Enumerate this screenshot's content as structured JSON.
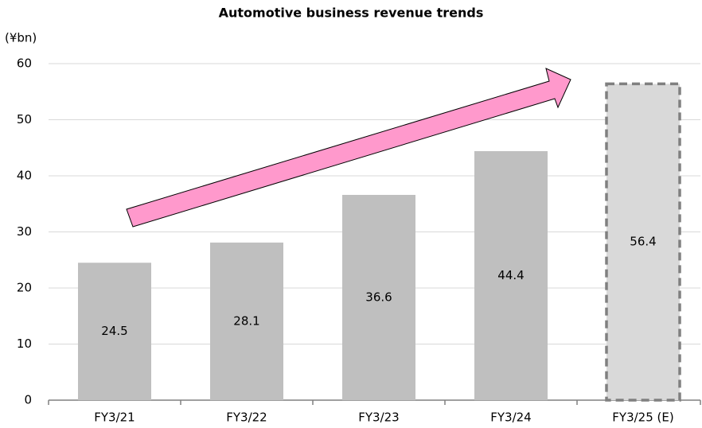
{
  "chart_data": {
    "type": "bar",
    "title": "Automotive business revenue trends",
    "y_label": "(¥bn)",
    "categories": [
      "FY3/21",
      "FY3/22",
      "FY3/23",
      "FY3/24",
      "FY3/25 (E)"
    ],
    "values": [
      24.5,
      28.1,
      36.6,
      44.4,
      56.4
    ],
    "colors": [
      "#bfbfbf",
      "#bfbfbf",
      "#bfbfbf",
      "#bfbfbf",
      "#d9d9d9"
    ],
    "borders": [
      null,
      null,
      null,
      null,
      "#808080"
    ],
    "ylim": [
      0,
      60
    ],
    "yticks": [
      0,
      10,
      20,
      30,
      40,
      50,
      60
    ],
    "grid": true
  }
}
